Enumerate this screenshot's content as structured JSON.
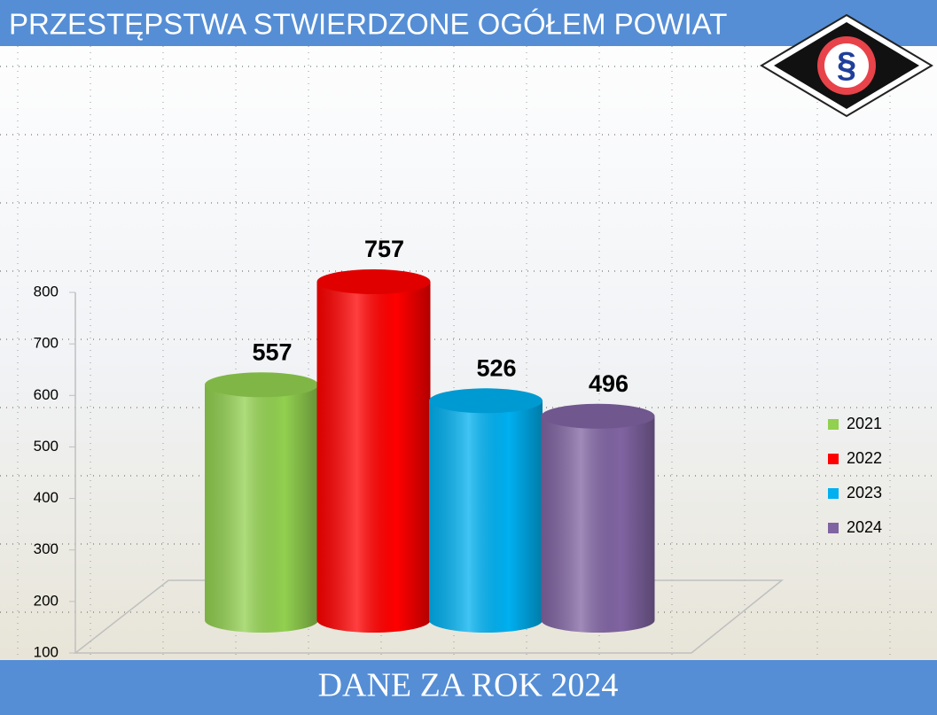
{
  "chart_data": {
    "type": "cylinder-bar",
    "title": "PRZESTĘPSTWA STWIERDZONE OGÓŁEM POWIAT",
    "footer": "DANE ZA ROK 2024",
    "series": [
      {
        "name": "2021",
        "color": "#92d050",
        "values": [
          557
        ]
      },
      {
        "name": "2022",
        "color": "#ff0000",
        "values": [
          757
        ]
      },
      {
        "name": "2023",
        "color": "#00b0f0",
        "values": [
          526
        ]
      },
      {
        "name": "2024",
        "color": "#8064a2",
        "values": [
          496
        ]
      }
    ],
    "ylim": [
      100,
      800
    ],
    "yticks": [
      100,
      200,
      300,
      400,
      500,
      600,
      700,
      800
    ],
    "legend": "right"
  },
  "logo_symbol": "§"
}
